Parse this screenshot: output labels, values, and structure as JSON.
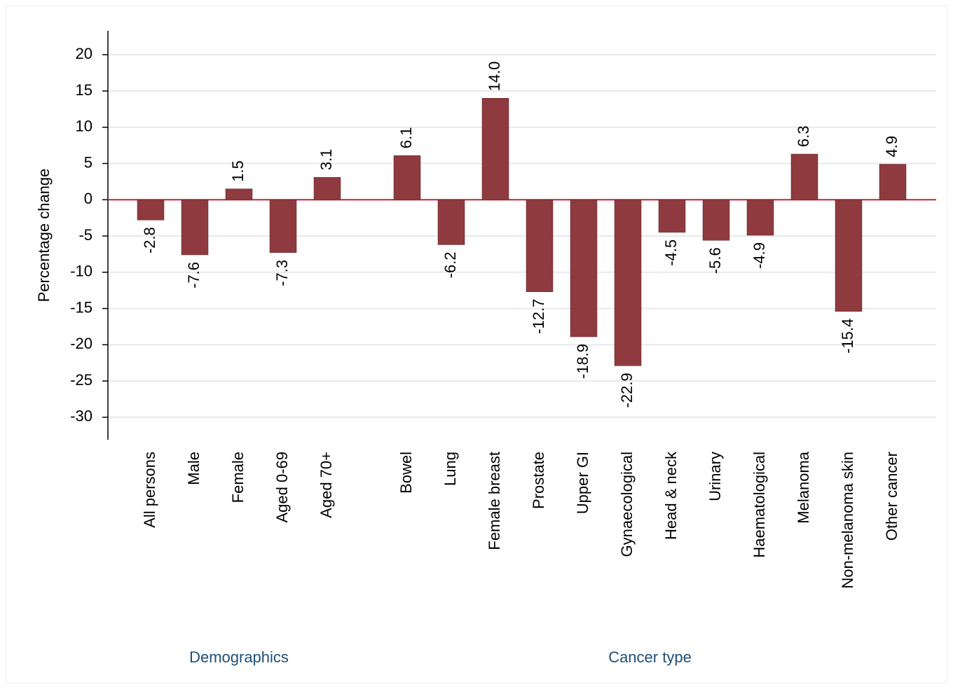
{
  "chart_data": {
    "type": "bar",
    "y_label": "Percentage change",
    "groups": [
      {
        "name": "Demographics",
        "categories": [
          "All persons",
          "Male",
          "Female",
          "Aged 0-69",
          "Aged 70+"
        ],
        "values": [
          -2.8,
          -7.6,
          1.5,
          -7.3,
          3.1
        ],
        "value_labels": [
          "-2.8",
          "-7.6",
          "1.5",
          "-7.3",
          "3.1"
        ]
      },
      {
        "name": "Cancer type",
        "categories": [
          "Bowel",
          "Lung",
          "Female breast",
          "Prostate",
          "Upper GI",
          "Gynaecological",
          "Head & neck",
          "Urinary",
          "Haematological",
          "Melanoma",
          "Non-melanoma skin",
          "Other cancer"
        ],
        "values": [
          6.1,
          -6.2,
          14.0,
          -12.7,
          -18.9,
          -22.9,
          -4.5,
          -5.6,
          -4.9,
          6.3,
          -15.4,
          4.9
        ],
        "value_labels": [
          "6.1",
          "-6.2",
          "14.0",
          "-12.7",
          "-18.9",
          "-22.9",
          "-4.5",
          "-5.6",
          "-4.9",
          "6.3",
          "-15.4",
          "4.9"
        ]
      }
    ],
    "color": "#8e3a3f",
    "zero_line_color": "#c0283b",
    "ylim": [
      -33.1,
      23.3
    ],
    "yticks": [
      -30,
      -25,
      -20,
      -15,
      -10,
      -5,
      0,
      5,
      10,
      15,
      20
    ],
    "grid": true
  }
}
